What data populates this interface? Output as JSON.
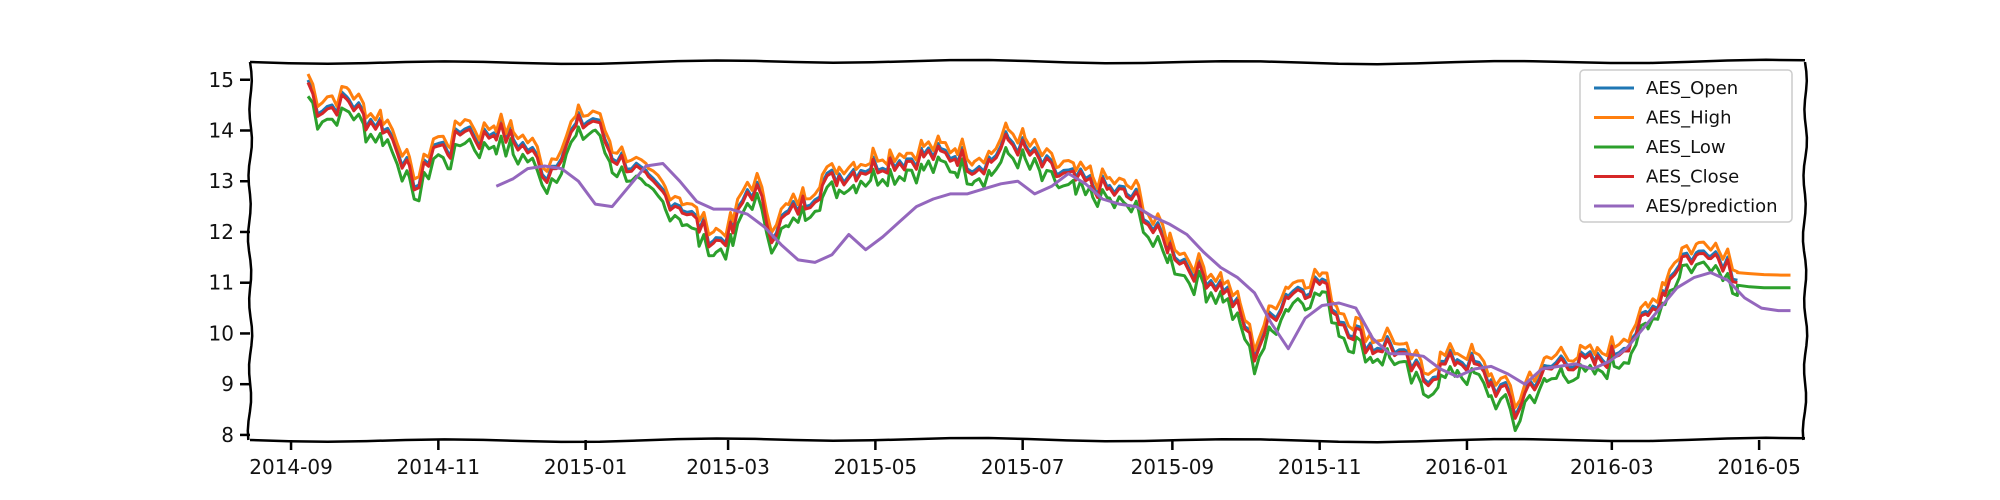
{
  "chart_data": {
    "type": "line",
    "title": "",
    "xlabel": "",
    "ylabel": "",
    "grid": false,
    "legend_position": "top-right",
    "x_range": [
      "2014-08-15",
      "2016-05-20"
    ],
    "y_range": [
      7.9,
      15.35
    ],
    "x_ticks": [
      {
        "date": "2014-09-01",
        "label": "2014-09"
      },
      {
        "date": "2014-11-01",
        "label": "2014-11"
      },
      {
        "date": "2015-01-01",
        "label": "2015-01"
      },
      {
        "date": "2015-03-01",
        "label": "2015-03"
      },
      {
        "date": "2015-05-01",
        "label": "2015-05"
      },
      {
        "date": "2015-07-01",
        "label": "2015-07"
      },
      {
        "date": "2015-09-01",
        "label": "2015-09"
      },
      {
        "date": "2015-11-01",
        "label": "2015-11"
      },
      {
        "date": "2016-01-01",
        "label": "2016-01"
      },
      {
        "date": "2016-03-01",
        "label": "2016-03"
      },
      {
        "date": "2016-05-01",
        "label": "2016-05"
      }
    ],
    "y_ticks": [
      8,
      9,
      10,
      11,
      12,
      13,
      14,
      15
    ],
    "base_close": {
      "x": [
        "2014-09-08",
        "2014-09-12",
        "2014-09-18",
        "2014-09-25",
        "2014-10-02",
        "2014-10-09",
        "2014-10-15",
        "2014-10-20",
        "2014-10-24",
        "2014-10-30",
        "2014-11-06",
        "2014-11-12",
        "2014-11-18",
        "2014-11-25",
        "2014-12-02",
        "2014-12-08",
        "2014-12-12",
        "2014-12-16",
        "2014-12-22",
        "2014-12-29",
        "2015-01-05",
        "2015-01-12",
        "2015-01-20",
        "2015-01-27",
        "2015-02-03",
        "2015-02-10",
        "2015-02-17",
        "2015-02-24",
        "2015-03-03",
        "2015-03-09",
        "2015-03-13",
        "2015-03-19",
        "2015-03-26",
        "2015-04-02",
        "2015-04-09",
        "2015-04-16",
        "2015-04-23",
        "2015-04-30",
        "2015-05-07",
        "2015-05-14",
        "2015-05-21",
        "2015-05-28",
        "2015-06-04",
        "2015-06-11",
        "2015-06-18",
        "2015-06-25",
        "2015-07-02",
        "2015-07-09",
        "2015-07-16",
        "2015-07-23",
        "2015-07-30",
        "2015-08-06",
        "2015-08-13",
        "2015-08-18",
        "2015-08-24",
        "2015-08-31",
        "2015-09-08",
        "2015-09-15",
        "2015-09-22",
        "2015-09-29",
        "2015-10-05",
        "2015-10-12",
        "2015-10-19",
        "2015-10-26",
        "2015-11-02",
        "2015-11-09",
        "2015-11-16",
        "2015-11-23",
        "2015-11-30",
        "2015-12-07",
        "2015-12-14",
        "2015-12-21",
        "2015-12-28",
        "2016-01-04",
        "2016-01-11",
        "2016-01-19",
        "2016-01-21",
        "2016-01-27",
        "2016-02-03",
        "2016-02-10",
        "2016-02-17",
        "2016-02-24",
        "2016-03-02",
        "2016-03-09",
        "2016-03-16",
        "2016-03-23",
        "2016-03-30",
        "2016-04-06",
        "2016-04-11",
        "2016-04-14",
        "2016-04-18",
        "2016-04-22"
      ],
      "y": [
        14.95,
        14.45,
        14.45,
        14.6,
        14.2,
        14.1,
        13.7,
        13.1,
        12.9,
        13.7,
        13.6,
        14.1,
        13.8,
        14.0,
        13.8,
        13.6,
        13.4,
        13.1,
        13.6,
        14.1,
        14.2,
        13.5,
        13.3,
        12.9,
        12.7,
        12.5,
        12.1,
        11.8,
        12.0,
        12.8,
        12.8,
        12.0,
        12.3,
        12.6,
        12.9,
        13.1,
        13.2,
        13.3,
        13.4,
        13.4,
        13.5,
        13.5,
        13.5,
        13.3,
        13.4,
        13.8,
        13.6,
        13.3,
        13.1,
        13.0,
        12.9,
        12.8,
        12.7,
        12.6,
        12.0,
        11.7,
        11.3,
        11.1,
        10.9,
        10.4,
        9.6,
        10.3,
        10.8,
        10.9,
        11.0,
        10.3,
        10.0,
        9.7,
        9.8,
        9.4,
        9.1,
        9.3,
        9.5,
        9.35,
        9.0,
        8.7,
        8.4,
        9.0,
        9.2,
        9.5,
        9.4,
        9.4,
        9.6,
        9.9,
        10.3,
        10.9,
        11.5,
        11.5,
        11.7,
        11.5,
        11.4,
        11.0
      ]
    },
    "flat_tail": {
      "x": [
        "2016-04-22",
        "2016-04-27",
        "2016-05-03",
        "2016-05-10",
        "2016-05-14"
      ],
      "high": [
        11.2,
        11.18,
        11.16,
        11.15,
        11.15
      ],
      "low": [
        10.95,
        10.92,
        10.9,
        10.9,
        10.9
      ]
    },
    "prediction": {
      "x": [
        "2014-11-25",
        "2014-12-02",
        "2014-12-08",
        "2014-12-15",
        "2014-12-22",
        "2014-12-29",
        "2015-01-05",
        "2015-01-12",
        "2015-01-19",
        "2015-01-26",
        "2015-02-02",
        "2015-02-09",
        "2015-02-16",
        "2015-02-23",
        "2015-03-02",
        "2015-03-09",
        "2015-03-16",
        "2015-03-23",
        "2015-03-30",
        "2015-04-06",
        "2015-04-13",
        "2015-04-20",
        "2015-04-27",
        "2015-05-04",
        "2015-05-11",
        "2015-05-18",
        "2015-05-25",
        "2015-06-01",
        "2015-06-08",
        "2015-06-15",
        "2015-06-22",
        "2015-06-29",
        "2015-07-06",
        "2015-07-13",
        "2015-07-20",
        "2015-07-27",
        "2015-08-03",
        "2015-08-10",
        "2015-08-17",
        "2015-08-24",
        "2015-08-31",
        "2015-09-07",
        "2015-09-14",
        "2015-09-21",
        "2015-09-28",
        "2015-10-05",
        "2015-10-12",
        "2015-10-19",
        "2015-10-26",
        "2015-11-02",
        "2015-11-09",
        "2015-11-16",
        "2015-11-23",
        "2015-11-30",
        "2015-12-07",
        "2015-12-14",
        "2015-12-21",
        "2015-12-28",
        "2016-01-04",
        "2016-01-11",
        "2016-01-18",
        "2016-01-25",
        "2016-02-01",
        "2016-02-08",
        "2016-02-15",
        "2016-02-22",
        "2016-02-29",
        "2016-03-07",
        "2016-03-14",
        "2016-03-21",
        "2016-03-28",
        "2016-04-04",
        "2016-04-11",
        "2016-04-18",
        "2016-04-25",
        "2016-05-02",
        "2016-05-09",
        "2016-05-14"
      ],
      "y": [
        12.9,
        13.05,
        13.25,
        13.3,
        13.25,
        13.0,
        12.55,
        12.5,
        12.9,
        13.3,
        13.35,
        13.0,
        12.6,
        12.45,
        12.45,
        12.35,
        12.1,
        11.75,
        11.45,
        11.4,
        11.55,
        11.95,
        11.65,
        11.9,
        12.2,
        12.5,
        12.65,
        12.75,
        12.75,
        12.85,
        12.95,
        13.0,
        12.75,
        12.9,
        13.15,
        12.95,
        12.65,
        12.55,
        12.5,
        12.3,
        12.15,
        11.95,
        11.6,
        11.3,
        11.1,
        10.8,
        10.2,
        9.7,
        10.3,
        10.55,
        10.6,
        10.5,
        9.9,
        9.6,
        9.6,
        9.55,
        9.3,
        9.15,
        9.3,
        9.35,
        9.2,
        9.0,
        9.3,
        9.35,
        9.4,
        9.3,
        9.45,
        9.7,
        10.1,
        10.5,
        10.9,
        11.1,
        11.2,
        11.05,
        10.7,
        10.5,
        10.45,
        10.45
      ]
    },
    "series": [
      {
        "name": "AES_Open",
        "color": "#1f77b4"
      },
      {
        "name": "AES_High",
        "color": "#ff7f0e"
      },
      {
        "name": "AES_Low",
        "color": "#2ca02c"
      },
      {
        "name": "AES_Close",
        "color": "#d62728"
      },
      {
        "name": "AES/prediction",
        "color": "#9467bd"
      }
    ]
  }
}
